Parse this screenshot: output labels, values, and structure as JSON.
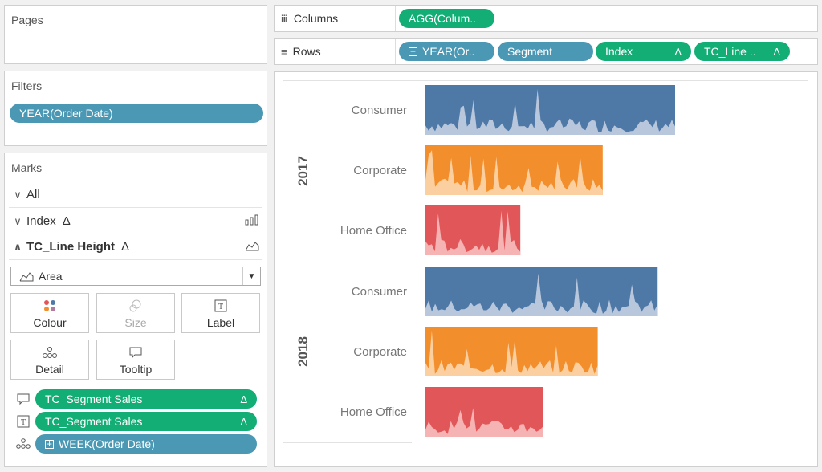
{
  "pages": {
    "title": "Pages"
  },
  "filters": {
    "title": "Filters",
    "items": [
      "YEAR(Order Date)"
    ]
  },
  "shelves": {
    "columns": {
      "label": "Columns",
      "icon": "iii",
      "pills": [
        "AGG(Colum.."
      ]
    },
    "rows": {
      "label": "Rows",
      "icon": "≡",
      "pills": [
        "YEAR(Or..",
        "Segment",
        "Index",
        "TC_Line .."
      ]
    }
  },
  "marks": {
    "title": "Marks",
    "rows": [
      {
        "label": "All"
      },
      {
        "label": "Index",
        "delta": "Δ"
      },
      {
        "label": "TC_Line Height",
        "delta": "Δ"
      }
    ],
    "mark_type": "Area",
    "buttons": {
      "colour": "Colour",
      "size": "Size",
      "label": "Label",
      "detail": "Detail",
      "tooltip": "Tooltip"
    },
    "fields": [
      {
        "name": "TC_Segment Sales",
        "delta": "Δ",
        "icon": "tooltip-icon"
      },
      {
        "name": "TC_Segment Sales",
        "delta": "Δ",
        "icon": "label-icon"
      },
      {
        "name": "WEEK(Order Date)",
        "delta": "",
        "icon": "detail-icon"
      }
    ]
  },
  "view": {
    "years": [
      "2017",
      "2018"
    ],
    "segments": [
      "Consumer",
      "Corporate",
      "Home Office"
    ]
  },
  "chart_data": {
    "type": "area",
    "series": [
      {
        "year": "2017",
        "segment": "Consumer",
        "color": "#4e79a7",
        "relative_width": 1.0
      },
      {
        "year": "2017",
        "segment": "Corporate",
        "color": "#f28e2b",
        "relative_width": 0.71
      },
      {
        "year": "2017",
        "segment": "Home Office",
        "color": "#e15759",
        "relative_width": 0.38
      },
      {
        "year": "2018",
        "segment": "Consumer",
        "color": "#4e79a7",
        "relative_width": 0.93
      },
      {
        "year": "2018",
        "segment": "Corporate",
        "color": "#f28e2b",
        "relative_width": 0.69
      },
      {
        "year": "2018",
        "segment": "Home Office",
        "color": "#e15759",
        "relative_width": 0.47
      }
    ],
    "grid": false
  }
}
